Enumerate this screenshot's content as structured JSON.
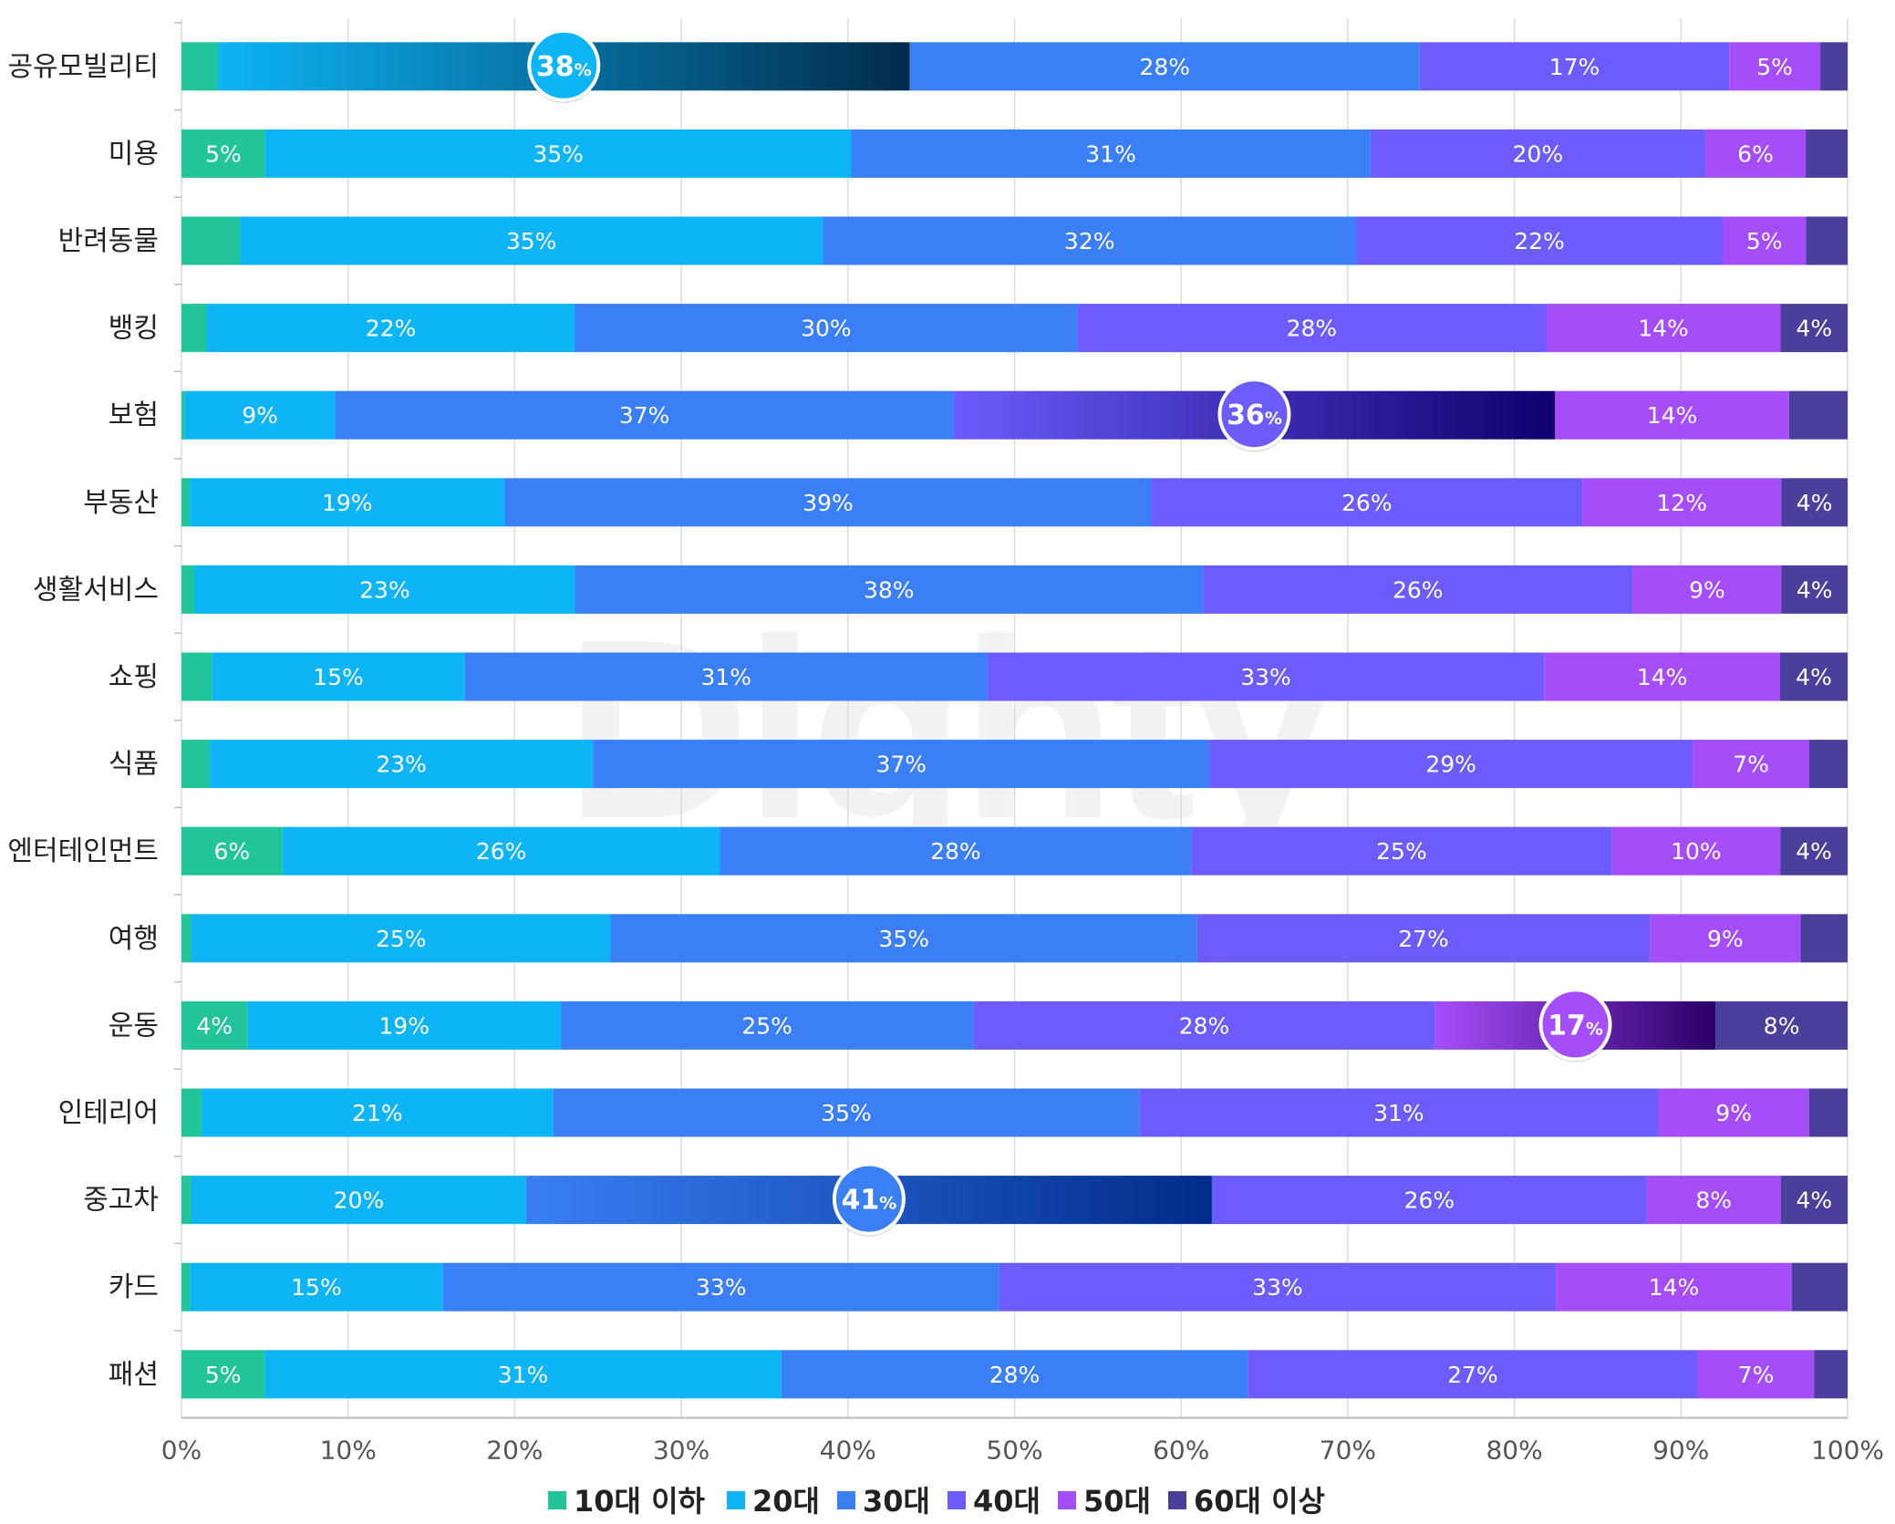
{
  "watermark": "Dighty",
  "chart_data": {
    "type": "bar",
    "orientation": "horizontal",
    "stacked": true,
    "normalized": true,
    "categories": [
      "공유모빌리티",
      "미용",
      "반려동물",
      "뱅킹",
      "보험",
      "부동산",
      "생활서비스",
      "쇼핑",
      "식품",
      "엔터테인먼트",
      "여행",
      "운동",
      "인테리어",
      "중고차",
      "카드",
      "패션"
    ],
    "series": [
      {
        "name": "10대 이하",
        "color": "#22c49a",
        "values": [
          2,
          5,
          3.5,
          1.5,
          0.2,
          0.5,
          0.8,
          1.8,
          1.7,
          6,
          0.6,
          4,
          1.2,
          0.6,
          0.5,
          5
        ],
        "labels": [
          "",
          "5%",
          "",
          "",
          "",
          "",
          "",
          "",
          "",
          "6%",
          "",
          "4%",
          "",
          "",
          "",
          "5%"
        ]
      },
      {
        "name": "20대",
        "color": "#0db4f6",
        "values": [
          38,
          35,
          35,
          22,
          9,
          19,
          23,
          15,
          23,
          26,
          25,
          19,
          21,
          20,
          15,
          31
        ],
        "labels": [
          "38%",
          "35%",
          "35%",
          "22%",
          "9%",
          "19%",
          "23%",
          "15%",
          "23%",
          "26%",
          "25%",
          "19%",
          "21%",
          "20%",
          "15%",
          "31%"
        ]
      },
      {
        "name": "30대",
        "color": "#3a7ff5",
        "values": [
          28,
          31,
          32,
          30,
          37,
          39,
          38,
          31,
          37,
          28,
          35,
          25,
          35,
          41,
          33,
          28
        ],
        "labels": [
          "28%",
          "31%",
          "32%",
          "30%",
          "37%",
          "39%",
          "38%",
          "31%",
          "37%",
          "28%",
          "35%",
          "25%",
          "35%",
          "41%",
          "33%",
          "28%"
        ]
      },
      {
        "name": "40대",
        "color": "#6b5cfb",
        "values": [
          17,
          20,
          22,
          28,
          36,
          26,
          26,
          33,
          29,
          25,
          27,
          28,
          31,
          26,
          33,
          27
        ],
        "labels": [
          "17%",
          "20%",
          "22%",
          "28%",
          "36%",
          "26%",
          "26%",
          "33%",
          "29%",
          "25%",
          "27%",
          "28%",
          "31%",
          "26%",
          "33%",
          "27%"
        ]
      },
      {
        "name": "50대",
        "color": "#a64dfa",
        "values": [
          5,
          6,
          5,
          14,
          14,
          12,
          9,
          14,
          7,
          10,
          9,
          17,
          9,
          8,
          14,
          7
        ],
        "labels": [
          "5%",
          "6%",
          "5%",
          "14%",
          "14%",
          "12%",
          "9%",
          "14%",
          "7%",
          "10%",
          "9%",
          "17%",
          "9%",
          "8%",
          "14%",
          "7%"
        ]
      },
      {
        "name": "60대 이상",
        "color": "#4b3f9c",
        "values": [
          1.5,
          2.5,
          2.5,
          4,
          3.5,
          4,
          4,
          4,
          2.3,
          4,
          2.8,
          8,
          2.3,
          4,
          3.3,
          2
        ],
        "labels": [
          "",
          "",
          "",
          "4%",
          "",
          "4%",
          "4%",
          "4%",
          "",
          "4%",
          "",
          "8%",
          "",
          "4%",
          "",
          ""
        ]
      }
    ],
    "highlights": [
      {
        "category": "공유모빌리티",
        "series": "20대",
        "value": "38",
        "unit": "%",
        "gradient_end": "#012b4a",
        "bubble_color": "#0db4f6"
      },
      {
        "category": "보험",
        "series": "40대",
        "value": "36",
        "unit": "%",
        "gradient_end": "#0f006e",
        "bubble_color": "#6b5cfb"
      },
      {
        "category": "운동",
        "series": "50대",
        "value": "17",
        "unit": "%",
        "gradient_end": "#2b0066",
        "bubble_color": "#a64dfa"
      },
      {
        "category": "중고차",
        "series": "30대",
        "value": "41",
        "unit": "%",
        "gradient_end": "#002c8a",
        "bubble_color": "#3a7ff5"
      }
    ],
    "x_axis": {
      "ticks": [
        0,
        10,
        20,
        30,
        40,
        50,
        60,
        70,
        80,
        90,
        100
      ],
      "tick_labels": [
        "0%",
        "10%",
        "20%",
        "30%",
        "40%",
        "50%",
        "60%",
        "70%",
        "80%",
        "90%",
        "100%"
      ],
      "xlim": [
        0,
        100
      ]
    },
    "grid": true,
    "legend_position": "bottom"
  }
}
